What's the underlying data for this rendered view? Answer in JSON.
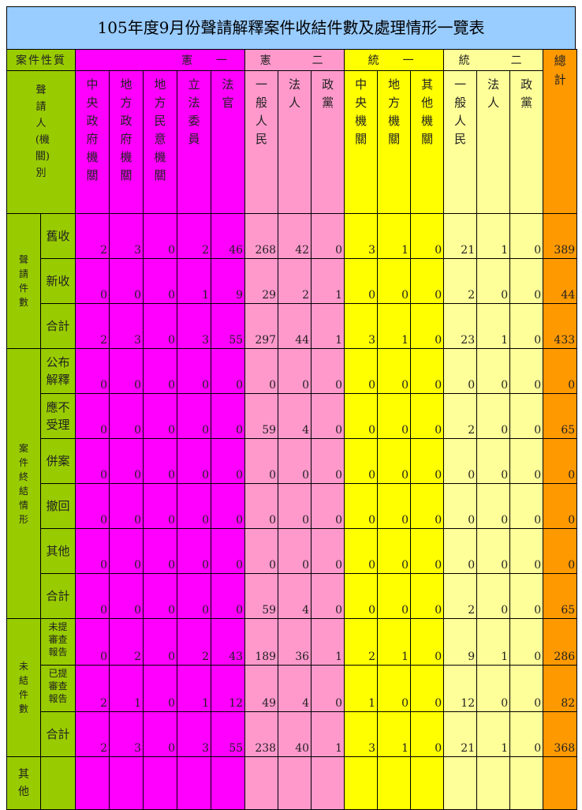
{
  "title": "105年度9月份聲請解釋案件收結件數及處理情形一覽表",
  "colors": {
    "title": "#99ccff",
    "label": "#99cc00",
    "group1": "#ff00ff",
    "group2": "#ff99cc",
    "group3": "#ffff00",
    "group4": "#ffff99",
    "total": "#ff9900"
  },
  "corner_label": "案件性質",
  "applicant_label": "聲請人(機關)別",
  "groups": [
    {
      "label": "憲　一",
      "cls": "m",
      "columns": [
        "中央政府機關",
        "地方政府機關",
        "地方民意機關",
        "立法委員",
        "法官"
      ]
    },
    {
      "label": "憲　　二",
      "cls": "p",
      "columns": [
        "一般人民",
        "法人",
        "政黨"
      ]
    },
    {
      "label": "統　一",
      "cls": "y",
      "columns": [
        "中央機關",
        "地方機關",
        "其他機關"
      ]
    },
    {
      "label": "統　　二",
      "cls": "ly",
      "columns": [
        "一般人民",
        "法人",
        "政黨"
      ]
    }
  ],
  "total_label": "總計",
  "sections": [
    {
      "label": "聲請件數",
      "rows": [
        {
          "label": "舊收",
          "values": [
            2,
            3,
            0,
            2,
            46,
            268,
            42,
            0,
            3,
            1,
            0,
            21,
            1,
            0
          ],
          "total": 389
        },
        {
          "label": "新收",
          "values": [
            0,
            0,
            0,
            1,
            9,
            29,
            2,
            1,
            0,
            0,
            0,
            2,
            0,
            0
          ],
          "total": 44
        },
        {
          "label": "合計",
          "values": [
            2,
            3,
            0,
            3,
            55,
            297,
            44,
            1,
            3,
            1,
            0,
            23,
            1,
            0
          ],
          "total": 433
        }
      ]
    },
    {
      "label": "案件終結情形",
      "rows": [
        {
          "label": "公布解釋",
          "values": [
            0,
            0,
            0,
            0,
            0,
            0,
            0,
            0,
            0,
            0,
            0,
            0,
            0,
            0
          ],
          "total": 0
        },
        {
          "label": "應不受理",
          "values": [
            0,
            0,
            0,
            0,
            0,
            59,
            4,
            0,
            0,
            0,
            0,
            2,
            0,
            0
          ],
          "total": 65
        },
        {
          "label": "併案",
          "values": [
            0,
            0,
            0,
            0,
            0,
            0,
            0,
            0,
            0,
            0,
            0,
            0,
            0,
            0
          ],
          "total": 0
        },
        {
          "label": "撤回",
          "values": [
            0,
            0,
            0,
            0,
            0,
            0,
            0,
            0,
            0,
            0,
            0,
            0,
            0,
            0
          ],
          "total": 0
        },
        {
          "label": "其他",
          "values": [
            0,
            0,
            0,
            0,
            0,
            0,
            0,
            0,
            0,
            0,
            0,
            0,
            0,
            0
          ],
          "total": 0
        },
        {
          "label": "合計",
          "values": [
            0,
            0,
            0,
            0,
            0,
            59,
            4,
            0,
            0,
            0,
            0,
            2,
            0,
            0
          ],
          "total": 65
        }
      ]
    },
    {
      "label": "未結件數",
      "rows": [
        {
          "label": "未提審查報告",
          "values": [
            0,
            2,
            0,
            2,
            43,
            189,
            36,
            1,
            2,
            1,
            0,
            9,
            1,
            0
          ],
          "total": 286
        },
        {
          "label": "已提審查報告",
          "values": [
            2,
            1,
            0,
            1,
            12,
            49,
            4,
            0,
            1,
            0,
            0,
            12,
            0,
            0
          ],
          "total": 82
        },
        {
          "label": "合計",
          "values": [
            2,
            3,
            0,
            3,
            55,
            238,
            40,
            1,
            3,
            1,
            0,
            21,
            1,
            0
          ],
          "total": 368
        }
      ]
    },
    {
      "label": "其他",
      "rows": [
        {
          "label": "",
          "values": [
            "",
            "",
            "",
            "",
            "",
            "",
            "",
            "",
            "",
            "",
            "",
            "",
            "",
            ""
          ],
          "total": ""
        }
      ]
    }
  ]
}
